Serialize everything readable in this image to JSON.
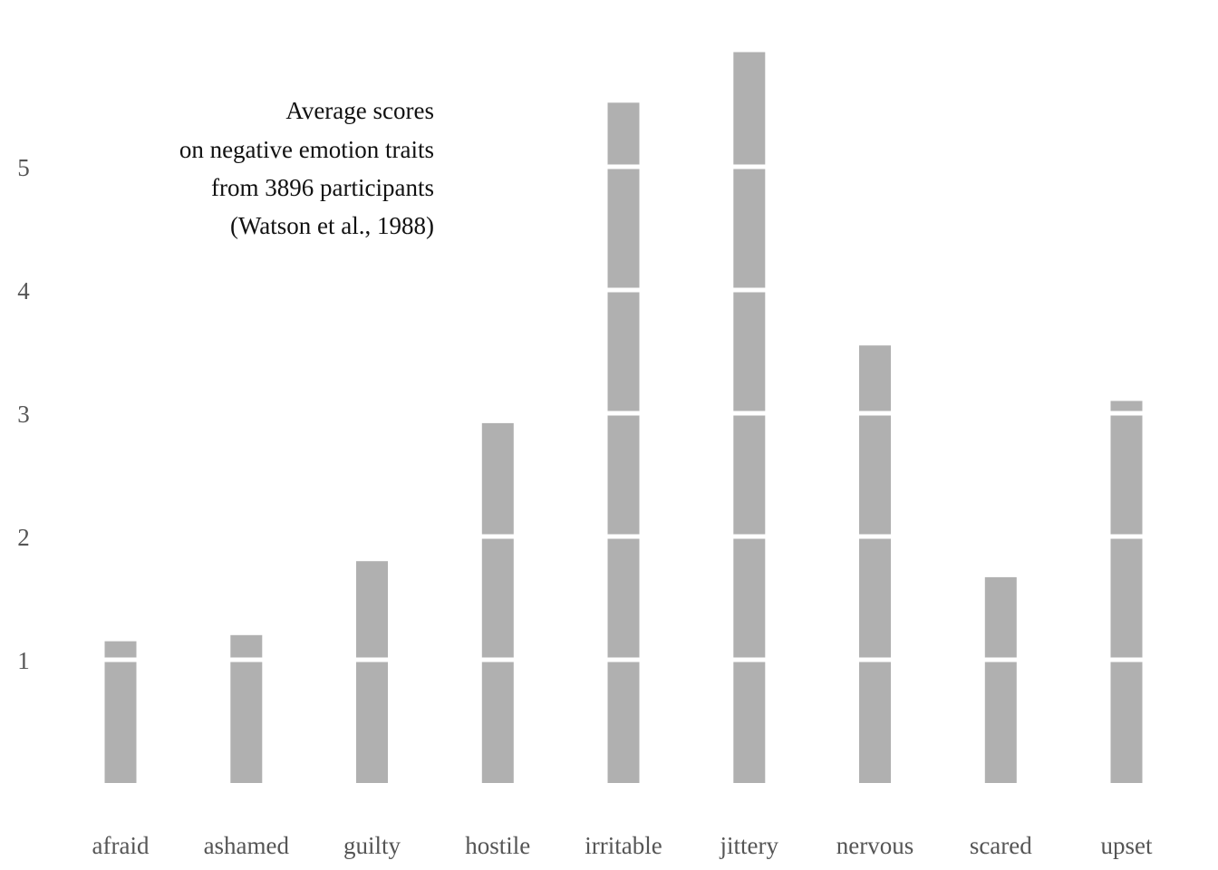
{
  "chart_data": {
    "type": "bar",
    "title_lines": [
      "Average scores",
      "on negative emotion traits",
      "from 3896 participants",
      "(Watson et al., 1988)"
    ],
    "xlabel": "",
    "ylabel": "",
    "categories": [
      "afraid",
      "ashamed",
      "guilty",
      "hostile",
      "irritable",
      "jittery",
      "nervous",
      "scared",
      "upset"
    ],
    "values": [
      1.15,
      1.2,
      1.8,
      2.92,
      5.52,
      5.93,
      3.55,
      1.67,
      3.1
    ],
    "yticks": [
      1,
      2,
      3,
      4,
      5
    ],
    "ylim": [
      0,
      6
    ],
    "grid": "white lines across bars at each integer",
    "legend": "none",
    "colors": {
      "bar": "#b0b0b0",
      "grid": "#ffffff"
    }
  }
}
